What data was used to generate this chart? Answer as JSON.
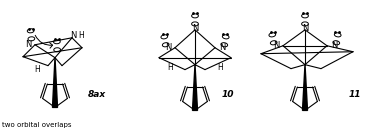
{
  "background_color": "#ffffff",
  "label_8ax": "8ax",
  "label_10": "10",
  "label_11": "11",
  "caption": "two orbital overlaps",
  "fig_width": 3.78,
  "fig_height": 1.29,
  "dpi": 100
}
